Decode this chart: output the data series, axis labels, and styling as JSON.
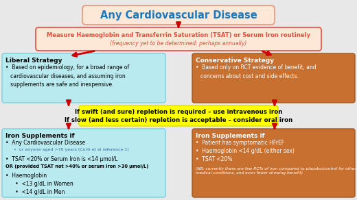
{
  "title": "Any Cardiovascular Disease",
  "title_color": "#1a7abf",
  "title_bg": "#fde8d8",
  "title_border": "#e8967a",
  "measure_box": {
    "line1": "Measure Haemoglobin and Transferrin Saturation (TSAT) or Serum Iron routinely",
    "line2": "(frequency yet to be determined; perhaps annually)",
    "bg": "#fde8d8",
    "border": "#e74c3c",
    "text_color": "#e74c3c"
  },
  "liberal_box": {
    "title": "Liberal Strategy",
    "text": "•  Based on epidemiology, for a broad range of\n   cardiovascular diseases, and assuming iron\n   supplements are safe and inexpensive.",
    "bg": "#b8eaf0",
    "border": "#7acfdb",
    "text_color": "#000000",
    "title_color": "#000000"
  },
  "conservative_box": {
    "title": "Conservative Strategy",
    "text": "•  Based only on RCT evidence of benefit, and\n   concerns about cost and side effects.",
    "bg": "#c87030",
    "border": "#a05820",
    "text_color": "#ffffff",
    "title_color": "#ffffff"
  },
  "yellow_box": {
    "line1_normal": " repletion is required – use intravenous iron",
    "line1_bold": "If swift",
    "line1_small": " (and sure)",
    "line2_normal": " repletion is acceptable – consider oral iron",
    "line2_bold": "If slow",
    "line2_small": " (and less certain)",
    "bg": "#ffff00",
    "border": "#dddd00",
    "text_color": "#000000"
  },
  "liberal_iron_box": {
    "title": "Iron Supplements if",
    "lines": [
      "•  Any Cardiovascular Disease",
      "      •  or anyone aged >70 years (Corti et al reference 1)",
      "•  TSAT <20% or Serum Iron is <14 μmol/L",
      "OR (provided TSAT not >40% or serum iron >30 μmol/L)",
      "•  Haemoglobin",
      "      •  <13 g/dL in Women",
      "      •  <14 g/dL in Men"
    ],
    "line_styles": [
      "normal",
      "small",
      "normal",
      "or",
      "normal",
      "normal",
      "normal"
    ],
    "bg": "#b8eaf0",
    "border": "#7acfdb",
    "text_color": "#000000",
    "title_color": "#000000"
  },
  "conservative_iron_box": {
    "title": "Iron Supplements if",
    "lines": [
      "•  Patient has symptomatic HFrEF",
      "•  Haemoglobin <14 g/dL (either sex)",
      "•  TSAT <20%",
      "(NB: currently there are few RCTs of iron compared to placebo/control for other medical conditions, and even fewer showing benefit)"
    ],
    "bg": "#c87030",
    "border": "#a05820",
    "text_color": "#ffffff",
    "title_color": "#ffffff"
  },
  "arrow_color": "#cc0000",
  "bg_color": "#e8e8e8"
}
